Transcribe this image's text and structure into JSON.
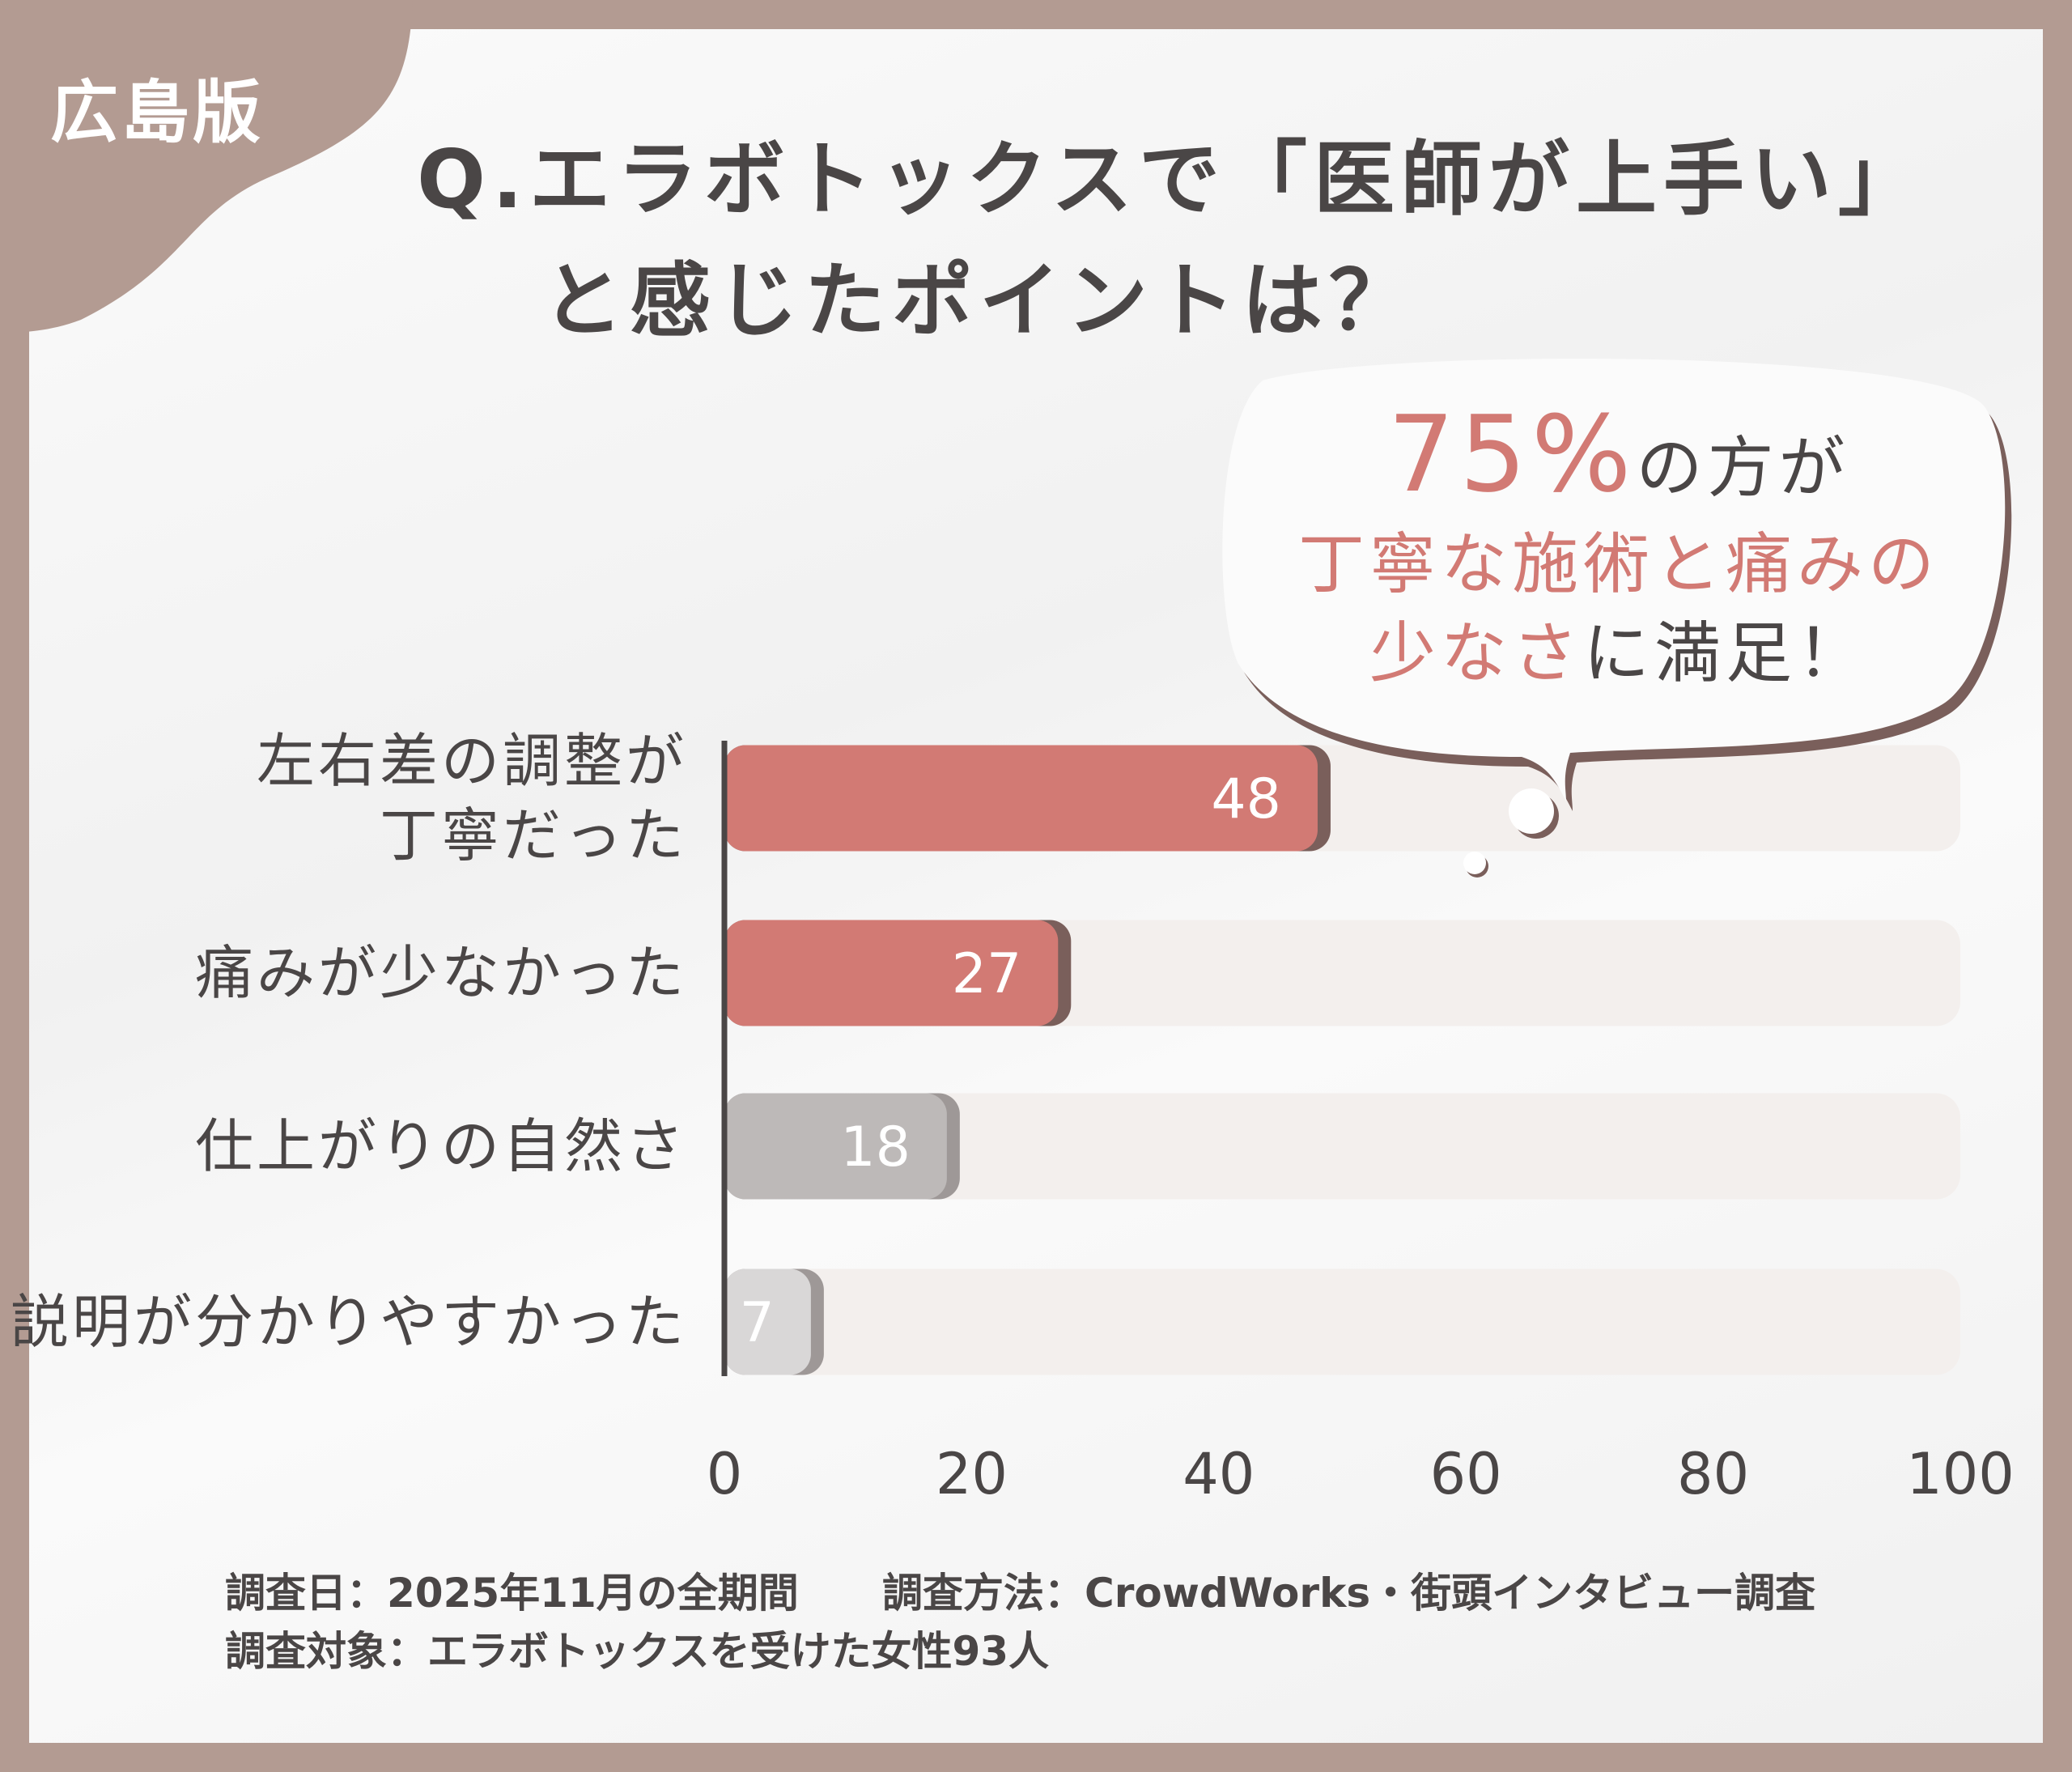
{
  "badge": "広島版",
  "title": {
    "line1": "Q.エラボトックスで「医師が上手い」",
    "line2": "と感じたポイントは？"
  },
  "callout": {
    "percent": "75%",
    "line1_rest": "の方が",
    "line2": "丁寧な施術と痛みの",
    "line3_pink": "少なさ",
    "line3_rest": "に満足！"
  },
  "chart_data": {
    "type": "bar",
    "orientation": "horizontal",
    "categories": [
      "左右差の調整が\n丁寧だった",
      "痛みが少なかった",
      "仕上がりの自然さ",
      "説明が分かりやすかった"
    ],
    "category_lines": [
      [
        "左右差の調整が",
        "丁寧だった"
      ],
      [
        "痛みが少なかった"
      ],
      [
        "仕上がりの自然さ"
      ],
      [
        "説明が分かりやすかった"
      ]
    ],
    "values": [
      48,
      27,
      18,
      7
    ],
    "value_labels": [
      "48",
      "27",
      "18",
      "7"
    ],
    "bar_colors": [
      "#d27a74",
      "#d27a74",
      "#bdb9b8",
      "#d9d7d7"
    ],
    "xlim": [
      0,
      100
    ],
    "xticks": [
      "0",
      "20",
      "40",
      "60",
      "80",
      "100"
    ],
    "xtick_values": [
      0,
      20,
      40,
      60,
      80,
      100
    ],
    "xlabel": "",
    "ylabel": "",
    "grid": false
  },
  "footer": {
    "line1a": "調査日：2025年11月の全期間",
    "line1b": "調査方法：CrowdWorks・街頭インタビュー調査",
    "line2": "調査対象：エラボトックスを受けた女性93人"
  },
  "colors": {
    "frame": "#b39b92",
    "accent": "#d27a74",
    "text": "#4a4646"
  }
}
